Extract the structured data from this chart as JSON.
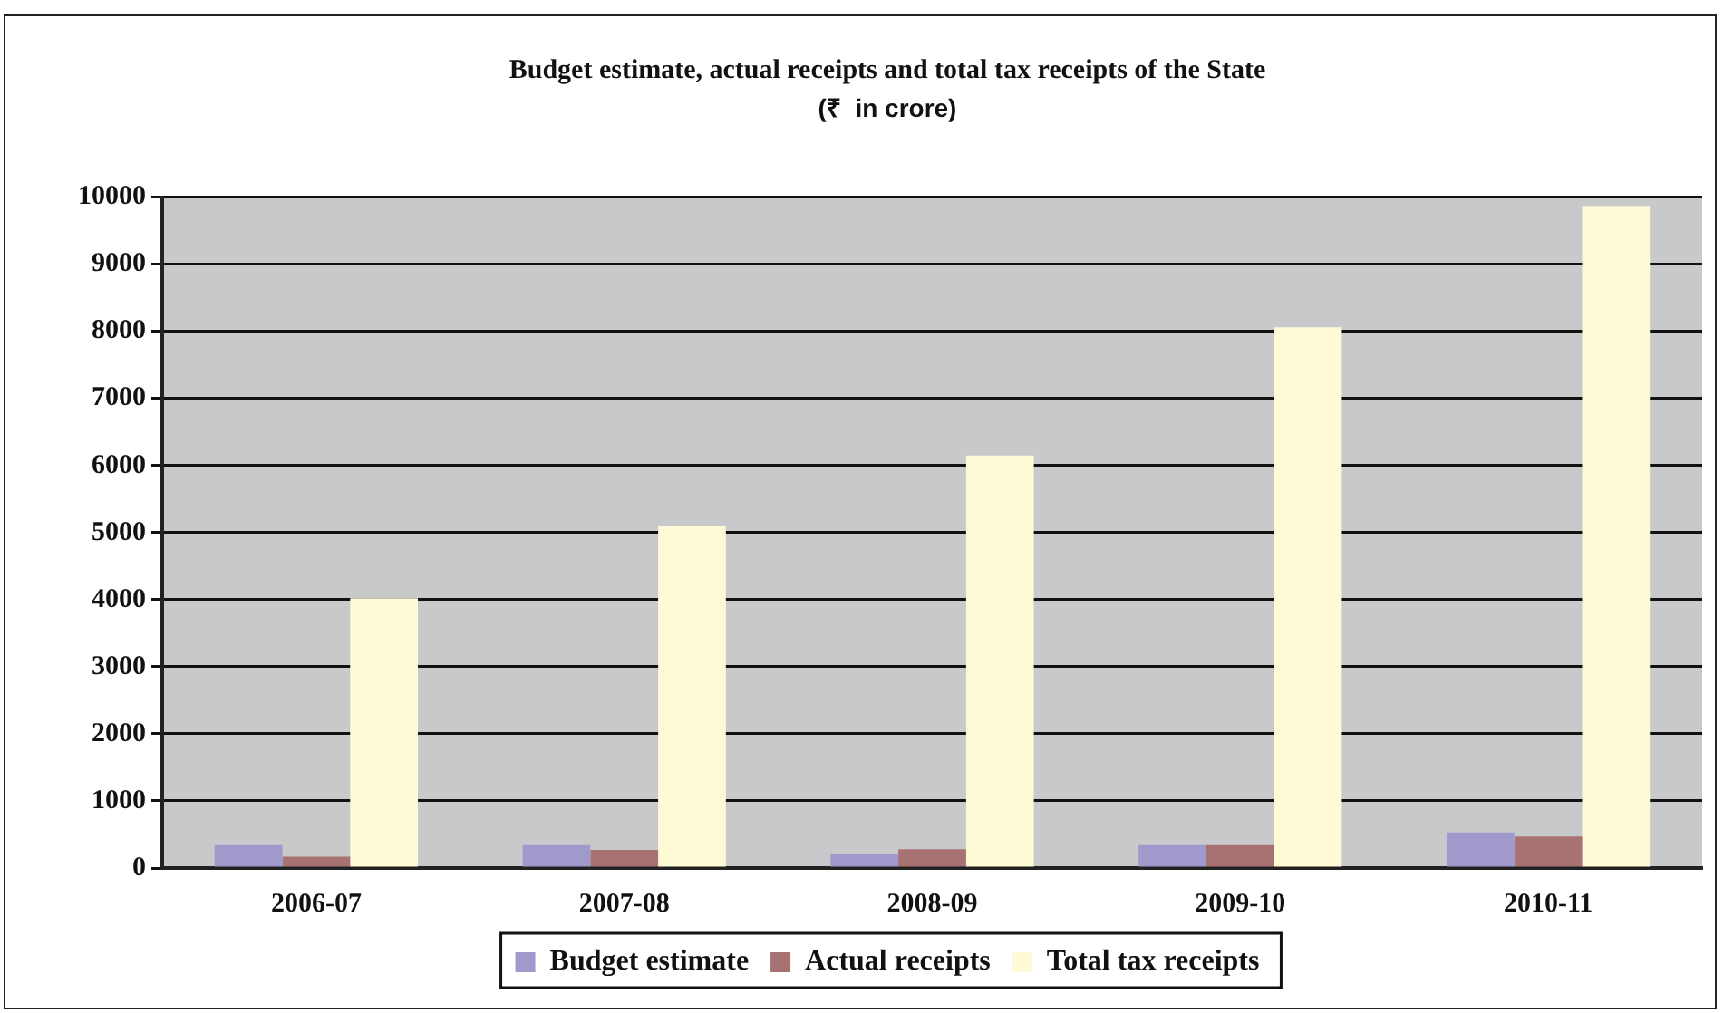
{
  "chart_data": {
    "type": "bar",
    "title": "Budget estimate, actual receipts and total tax receipts of the State",
    "subtitle": "(₹  in crore)",
    "categories": [
      "2006-07",
      "2007-08",
      "2008-09",
      "2009-10",
      "2010-11"
    ],
    "series": [
      {
        "name": "Budget estimate",
        "color": "#9f99cc",
        "values": [
          340,
          340,
          210,
          340,
          530
        ]
      },
      {
        "name": "Actual receipts",
        "color": "#a87272",
        "values": [
          170,
          270,
          280,
          340,
          470
        ]
      },
      {
        "name": "Total tax receipts",
        "color": "#fffad6",
        "values": [
          4020,
          5100,
          6150,
          8060,
          9870
        ]
      }
    ],
    "ylim": [
      0,
      10000
    ],
    "yticks": [
      0,
      1000,
      2000,
      3000,
      4000,
      5000,
      6000,
      7000,
      8000,
      9000,
      10000
    ],
    "grid": "y",
    "legend": "bottom"
  }
}
